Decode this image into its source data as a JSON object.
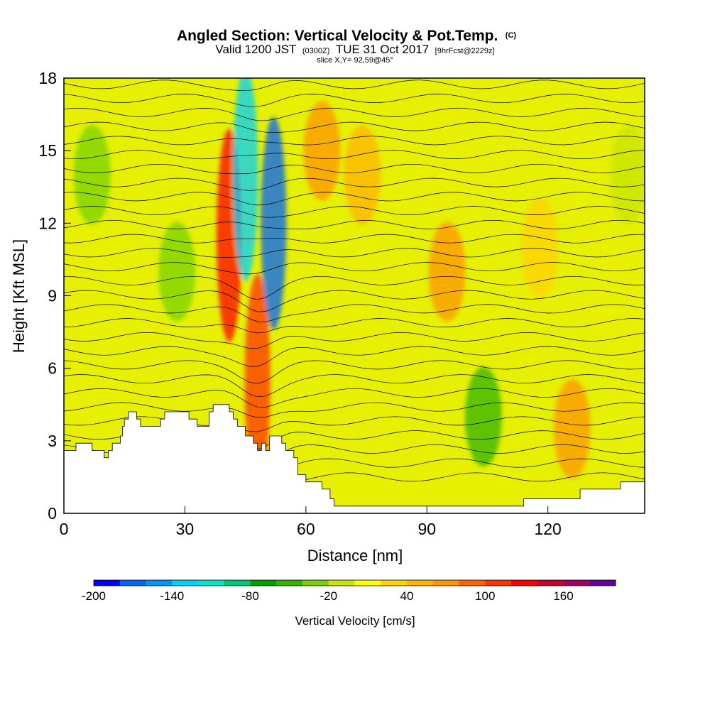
{
  "header": {
    "title": "Angled Section: Vertical Velocity & Pot.Temp.",
    "title_unit": "(C)",
    "valid_prefix": "Valid 1200 JST",
    "valid_utc": "(0300Z)",
    "valid_date": "TUE 31 Oct 2017",
    "forecast_info": "[9hrFcst@2229z]",
    "slice_info": "slice X,Y= 92,59@45°"
  },
  "chart_data": {
    "type": "heatmap",
    "xlabel": "Distance [nm]",
    "ylabel": "Height [Kft MSL]",
    "xlim": [
      0,
      144
    ],
    "ylim": [
      0,
      18
    ],
    "x_ticks": [
      0,
      30,
      60,
      90,
      120
    ],
    "y_ticks": [
      0,
      3,
      6,
      9,
      12,
      15,
      18
    ],
    "terrain_kft": [
      [
        0,
        2.6
      ],
      [
        3,
        2.6
      ],
      [
        3,
        2.9
      ],
      [
        7,
        2.9
      ],
      [
        7,
        2.6
      ],
      [
        10,
        2.6
      ],
      [
        10,
        2.3
      ],
      [
        11,
        2.3
      ],
      [
        11,
        2.6
      ],
      [
        12,
        2.6
      ],
      [
        12,
        2.9
      ],
      [
        14,
        2.9
      ],
      [
        14,
        3.2
      ],
      [
        14.5,
        3.2
      ],
      [
        14.5,
        3.6
      ],
      [
        15,
        3.6
      ],
      [
        15,
        3.9
      ],
      [
        16,
        3.9
      ],
      [
        16,
        4.2
      ],
      [
        18,
        4.2
      ],
      [
        18,
        3.9
      ],
      [
        19,
        3.9
      ],
      [
        19,
        3.6
      ],
      [
        24,
        3.6
      ],
      [
        24,
        3.9
      ],
      [
        25,
        3.9
      ],
      [
        25,
        4.2
      ],
      [
        31,
        4.2
      ],
      [
        31,
        3.9
      ],
      [
        33,
        3.9
      ],
      [
        33,
        3.6
      ],
      [
        36,
        3.6
      ],
      [
        36,
        4.2
      ],
      [
        37,
        4.2
      ],
      [
        37,
        4.5
      ],
      [
        41,
        4.5
      ],
      [
        41,
        4.2
      ],
      [
        42,
        4.2
      ],
      [
        42,
        3.9
      ],
      [
        43,
        3.9
      ],
      [
        43,
        3.6
      ],
      [
        45,
        3.6
      ],
      [
        45,
        3.2
      ],
      [
        47,
        3.2
      ],
      [
        47,
        2.9
      ],
      [
        48,
        2.9
      ],
      [
        48,
        2.6
      ],
      [
        49,
        2.6
      ],
      [
        49,
        2.9
      ],
      [
        50,
        2.9
      ],
      [
        50,
        2.6
      ],
      [
        51,
        2.6
      ],
      [
        51,
        3.2
      ],
      [
        54,
        3.2
      ],
      [
        54,
        2.9
      ],
      [
        55,
        2.9
      ],
      [
        55,
        2.6
      ],
      [
        57,
        2.6
      ],
      [
        57,
        2.3
      ],
      [
        58,
        2.3
      ],
      [
        58,
        1.6
      ],
      [
        60,
        1.6
      ],
      [
        60,
        1.3
      ],
      [
        64,
        1.3
      ],
      [
        64,
        1.0
      ],
      [
        66,
        1.0
      ],
      [
        66,
        0.6
      ],
      [
        67,
        0.6
      ],
      [
        67,
        0.3
      ],
      [
        114,
        0.3
      ],
      [
        114,
        0.6
      ],
      [
        128,
        0.6
      ],
      [
        128,
        1.0
      ],
      [
        138,
        1.0
      ],
      [
        138,
        1.3
      ],
      [
        144,
        1.3
      ]
    ],
    "velocity_cores": [
      {
        "x": 41,
        "y": 11.5,
        "w_cms": 130
      },
      {
        "x": 48,
        "y": 5.5,
        "w_cms": 110
      },
      {
        "x": 45,
        "y": 14.0,
        "w_cms": -140
      },
      {
        "x": 52,
        "y": 12.0,
        "w_cms": -180
      },
      {
        "x": 64,
        "y": 15.0,
        "w_cms": 60
      },
      {
        "x": 95,
        "y": 10.0,
        "w_cms": 60
      },
      {
        "x": 126,
        "y": 3.5,
        "w_cms": 60
      },
      {
        "x": 104,
        "y": 4.0,
        "w_cms": -60
      },
      {
        "x": 7,
        "y": 14.0,
        "w_cms": -30
      },
      {
        "x": 28,
        "y": 10.0,
        "w_cms": -40
      },
      {
        "x": 74,
        "y": 14.0,
        "w_cms": 40
      },
      {
        "x": 118,
        "y": 11.0,
        "w_cms": 30
      },
      {
        "x": 140,
        "y": 14.0,
        "w_cms": -20
      }
    ],
    "colorbar": {
      "title": "Vertical Velocity [cm/s]",
      "tick_labels": [
        "-200",
        "-140",
        "-80",
        "-20",
        "40",
        "100",
        "160"
      ],
      "colors": [
        "#0000ff",
        "#0064ff",
        "#0096ff",
        "#00d2ff",
        "#00e6c8",
        "#00c878",
        "#00a000",
        "#32b400",
        "#78d200",
        "#c8e600",
        "#ffff00",
        "#ffd200",
        "#ffb400",
        "#ff9600",
        "#ff6400",
        "#ff3200",
        "#ff0000",
        "#c80028",
        "#a00064",
        "#6400a0"
      ]
    }
  }
}
